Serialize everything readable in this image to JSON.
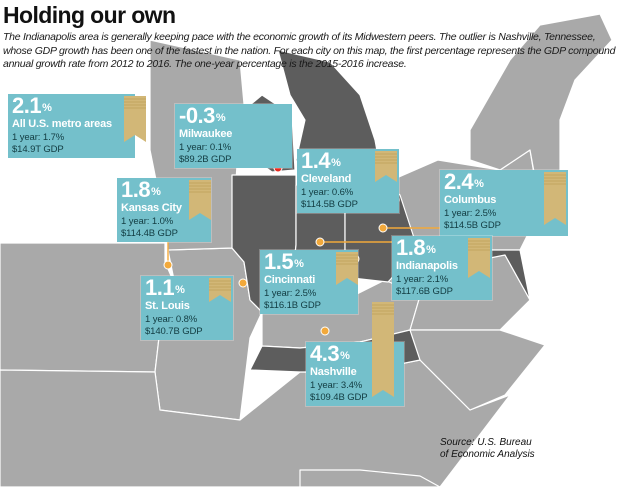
{
  "title": "Holding our own",
  "intro": "The Indianapolis area is generally keeping pace with the economic growth of its Midwestern peers. The outlier is Nashville, Tennessee, whose GDP growth has been one of the fastest in the nation. For each city on this map, the first percentage represents the GDP compound annual growth rate from 2012 to 2016. The one-year percentage is the 2015-2016 increase.",
  "source_line1": "Source: U.S. Bureau",
  "source_line2": "of Economic Analysis",
  "colors": {
    "card": "#74c0cb",
    "bar": "#d2b777",
    "land_dark": "#5d5d5d",
    "land_light": "#a9a9a9",
    "marker": "#f2a93b",
    "milwaukee_marker": "#e8281e"
  },
  "cards": [
    {
      "id": "us",
      "pct": "2.1",
      "pct_sign": "%",
      "city": "All U.S. metro areas",
      "one_year": "1 year: 1.7%",
      "gdp": "$14.9T GDP",
      "growth_pct": 2.1
    },
    {
      "id": "milwaukee",
      "pct": "-0.3",
      "pct_sign": "%",
      "city": "Milwaukee",
      "one_year": "1 year: 0.1%",
      "gdp": "$89.2B GDP",
      "growth_pct": -0.3
    },
    {
      "id": "cleveland",
      "pct": "1.4",
      "pct_sign": "%",
      "city": "Cleveland",
      "one_year": "1 year: 0.6%",
      "gdp": "$114.5B GDP",
      "growth_pct": 1.4
    },
    {
      "id": "columbus",
      "pct": "2.4",
      "pct_sign": "%",
      "city": "Columbus",
      "one_year": "1 year: 2.5%",
      "gdp": "$114.5B GDP",
      "growth_pct": 2.4
    },
    {
      "id": "kansas",
      "pct": "1.8",
      "pct_sign": "%",
      "city": "Kansas City",
      "one_year": "1 year: 1.0%",
      "gdp": "$114.4B GDP",
      "growth_pct": 1.8
    },
    {
      "id": "cincinnati",
      "pct": "1.5",
      "pct_sign": "%",
      "city": "Cincinnati",
      "one_year": "1 year: 2.5%",
      "gdp": "$116.1B GDP",
      "growth_pct": 1.5
    },
    {
      "id": "indianapolis",
      "pct": "1.8",
      "pct_sign": "%",
      "city": "Indianapolis",
      "one_year": "1 year: 2.1%",
      "gdp": "$117.6B GDP",
      "growth_pct": 1.8
    },
    {
      "id": "stlouis",
      "pct": "1.1",
      "pct_sign": "%",
      "city": "St. Louis",
      "one_year": "1 year: 0.8%",
      "gdp": "$140.7B GDP",
      "growth_pct": 1.1
    },
    {
      "id": "nashville",
      "pct": "4.3",
      "pct_sign": "%",
      "city": "Nashville",
      "one_year": "1 year: 3.4%",
      "gdp": "$109.4B GDP",
      "growth_pct": 4.3
    }
  ]
}
